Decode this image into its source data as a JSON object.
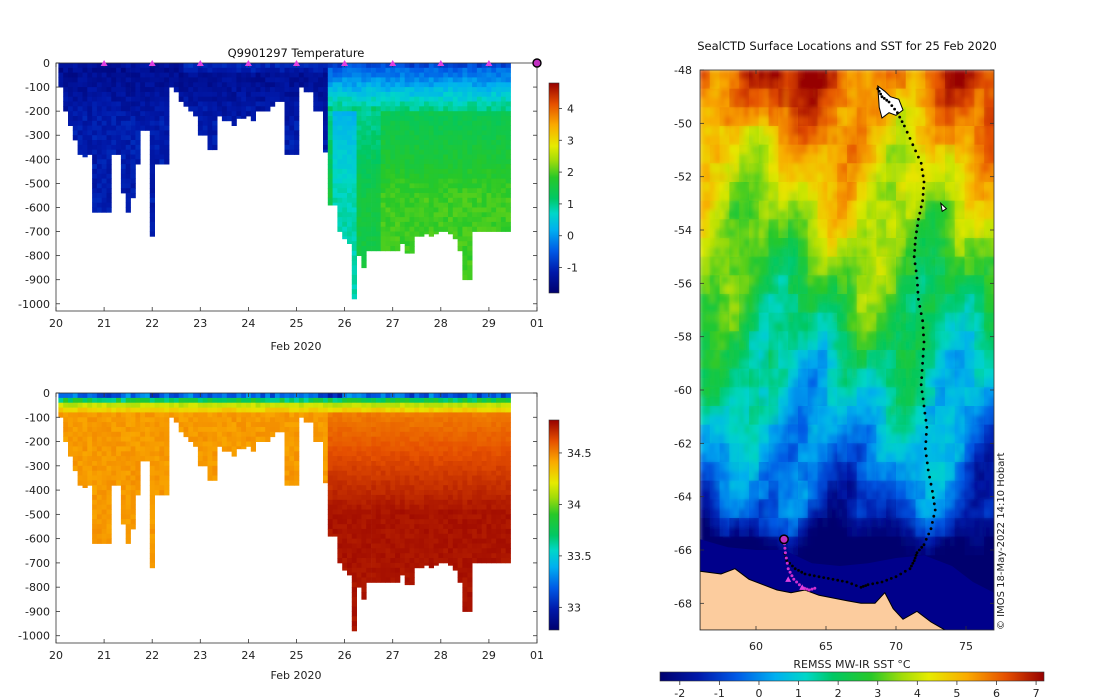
{
  "chart_data": [
    {
      "type": "heatmap",
      "name": "temperature-section",
      "title": "Q9901297  Temperature",
      "xlabel": "Feb 2020",
      "ylabel": "",
      "x_tick_labels": [
        "20",
        "21",
        "22",
        "23",
        "24",
        "25",
        "26",
        "27",
        "28",
        "29",
        "01"
      ],
      "xlim": [
        20,
        30
      ],
      "y_ticks": [
        0,
        -100,
        -200,
        -300,
        -400,
        -500,
        -600,
        -700,
        -800,
        -900,
        -1000
      ],
      "y_tick_labels": [
        "0",
        "-100",
        "-200",
        "-300",
        "-400",
        "-500",
        "-600",
        "-700",
        "-800",
        "-900",
        "-1000"
      ],
      "ylim": [
        -1030,
        0
      ],
      "colorbar": {
        "ticks": [
          -1,
          0,
          1,
          2,
          3,
          4
        ],
        "tick_labels": [
          "-1",
          "0",
          "1",
          "2",
          "3",
          "4"
        ],
        "range": [
          -1.8,
          4.8
        ]
      },
      "profile_days": [
        20.1,
        20.2,
        20.3,
        20.4,
        20.5,
        20.6,
        20.7,
        20.8,
        20.9,
        21.0,
        21.1,
        21.2,
        21.3,
        21.4,
        21.5,
        21.6,
        21.7,
        21.8,
        21.9,
        22.0,
        22.1,
        22.2,
        22.3,
        22.4,
        22.5,
        22.6,
        22.7,
        22.8,
        22.9,
        23.0,
        23.1,
        23.2,
        23.3,
        23.4,
        23.5,
        23.6,
        23.7,
        23.8,
        23.9,
        24.0,
        24.1,
        24.2,
        24.3,
        24.4,
        24.5,
        24.6,
        24.7,
        24.8,
        24.9,
        25.0,
        25.1,
        25.2,
        25.3,
        25.4,
        25.5,
        25.6,
        25.7,
        25.8,
        25.9,
        26.0,
        26.1,
        26.2,
        26.3,
        26.4,
        26.5,
        26.6,
        26.7,
        26.8,
        26.9,
        27.0,
        27.1,
        27.2,
        27.3,
        27.4,
        27.5,
        27.6,
        27.7,
        27.8,
        27.9,
        28.0,
        28.1,
        28.2,
        28.3,
        28.4,
        28.5,
        28.6,
        28.7,
        28.8,
        28.9,
        29.0,
        29.1,
        29.2,
        29.3,
        29.4
      ],
      "profile_depths": [
        -100,
        -200,
        -260,
        -320,
        -380,
        -390,
        -380,
        -620,
        -620,
        -620,
        -620,
        -380,
        -380,
        -540,
        -620,
        -560,
        -420,
        -280,
        -280,
        -720,
        -420,
        -420,
        -420,
        -100,
        -120,
        -160,
        -180,
        -200,
        -220,
        -300,
        -300,
        -360,
        -360,
        -220,
        -240,
        -240,
        -260,
        -230,
        -230,
        -220,
        -240,
        -200,
        -200,
        -200,
        -180,
        -160,
        -160,
        -380,
        -380,
        -380,
        -100,
        -120,
        -120,
        -200,
        -200,
        -370,
        -590,
        -590,
        -700,
        -730,
        -750,
        -980,
        -800,
        -850,
        -780,
        -780,
        -780,
        -780,
        -780,
        -780,
        -780,
        -750,
        -790,
        -790,
        -720,
        -720,
        -710,
        -720,
        -710,
        -700,
        -700,
        -710,
        -730,
        -780,
        -900,
        -900,
        -700,
        -700,
        -700,
        -700,
        -700,
        -700,
        -700,
        -700
      ],
      "markers": {
        "days": [
          21,
          22,
          23,
          24,
          25,
          26,
          27,
          28,
          29
        ],
        "final_day": 30.0,
        "color": "#e040e0",
        "final_color": "#c030c0"
      }
    },
    {
      "type": "heatmap",
      "name": "salinity-section",
      "title": "",
      "xlabel": "Feb 2020",
      "x_tick_labels": [
        "20",
        "21",
        "22",
        "23",
        "24",
        "25",
        "26",
        "27",
        "28",
        "29",
        "01"
      ],
      "y_tick_labels": [
        "0",
        "-100",
        "-200",
        "-300",
        "-400",
        "-500",
        "-600",
        "-700",
        "-800",
        "-900",
        "-1000"
      ],
      "colorbar": {
        "ticks": [
          33,
          33.5,
          34,
          34.5
        ],
        "tick_labels": [
          "33",
          "33.5",
          "34",
          "34.5"
        ],
        "range": [
          32.78,
          34.82
        ]
      }
    },
    {
      "type": "heatmap",
      "name": "sst-map",
      "title": "SealCTD Surface Locations and SST for 25 Feb 2020",
      "xlabel": "",
      "ylabel": "",
      "xlim": [
        56.0,
        77.0
      ],
      "ylim": [
        -69.0,
        -48.0
      ],
      "x_tick_labels": [
        "60",
        "65",
        "70",
        "75"
      ],
      "x_ticks": [
        60,
        65,
        70,
        75
      ],
      "y_tick_labels": [
        "-48",
        "-50",
        "-52",
        "-54",
        "-56",
        "-58",
        "-60",
        "-62",
        "-64",
        "-66",
        "-68"
      ],
      "y_ticks": [
        -48,
        -50,
        -52,
        -54,
        -56,
        -58,
        -60,
        -62,
        -64,
        -66,
        -68
      ],
      "colorbar": {
        "label": "REMSS MW-IR SST °C",
        "ticks": [
          -2,
          -1,
          0,
          1,
          2,
          3,
          4,
          5,
          6,
          7
        ],
        "tick_labels": [
          "-2",
          "-1",
          "0",
          "1",
          "2",
          "3",
          "4",
          "5",
          "6",
          "7"
        ],
        "range": [
          -2.5,
          7.2
        ]
      },
      "credit": "© IMOS 18-May-2022 14:10 Hobart",
      "track": {
        "lon": [
          68.7,
          69.0,
          69.5,
          70.1,
          70.6,
          71.2,
          71.8,
          72.0,
          71.9,
          71.6,
          71.4,
          71.3,
          71.5,
          71.6,
          71.9,
          72.0,
          71.9,
          71.8,
          72.0,
          72.2,
          72.1,
          72.3,
          72.6,
          72.8,
          72.5,
          72.0,
          71.5,
          71.3,
          71.0,
          70.0,
          69.0,
          68.0,
          67.5,
          66.5,
          65.5,
          64.5,
          63.5,
          62.8,
          62.2,
          62.0
        ],
        "lat": [
          -48.7,
          -49.0,
          -49.2,
          -49.6,
          -50.1,
          -50.8,
          -51.5,
          -52.2,
          -52.9,
          -53.6,
          -54.3,
          -55.0,
          -55.8,
          -56.6,
          -57.4,
          -58.2,
          -59.0,
          -59.8,
          -60.6,
          -61.4,
          -62.2,
          -63.0,
          -63.8,
          -64.5,
          -65.2,
          -65.8,
          -66.1,
          -66.4,
          -66.7,
          -67.0,
          -67.2,
          -67.3,
          -67.4,
          -67.2,
          -67.1,
          -67.0,
          -66.9,
          -66.7,
          -66.4,
          -66.0
        ],
        "recent_lon": [
          62.0,
          62.1,
          62.3,
          62.7,
          63.3,
          63.8,
          64.4
        ],
        "recent_lat": [
          -65.6,
          -66.1,
          -66.7,
          -67.1,
          -67.4,
          -67.5,
          -67.4
        ],
        "current_lon": 62.0,
        "current_lat": -65.6
      }
    }
  ]
}
